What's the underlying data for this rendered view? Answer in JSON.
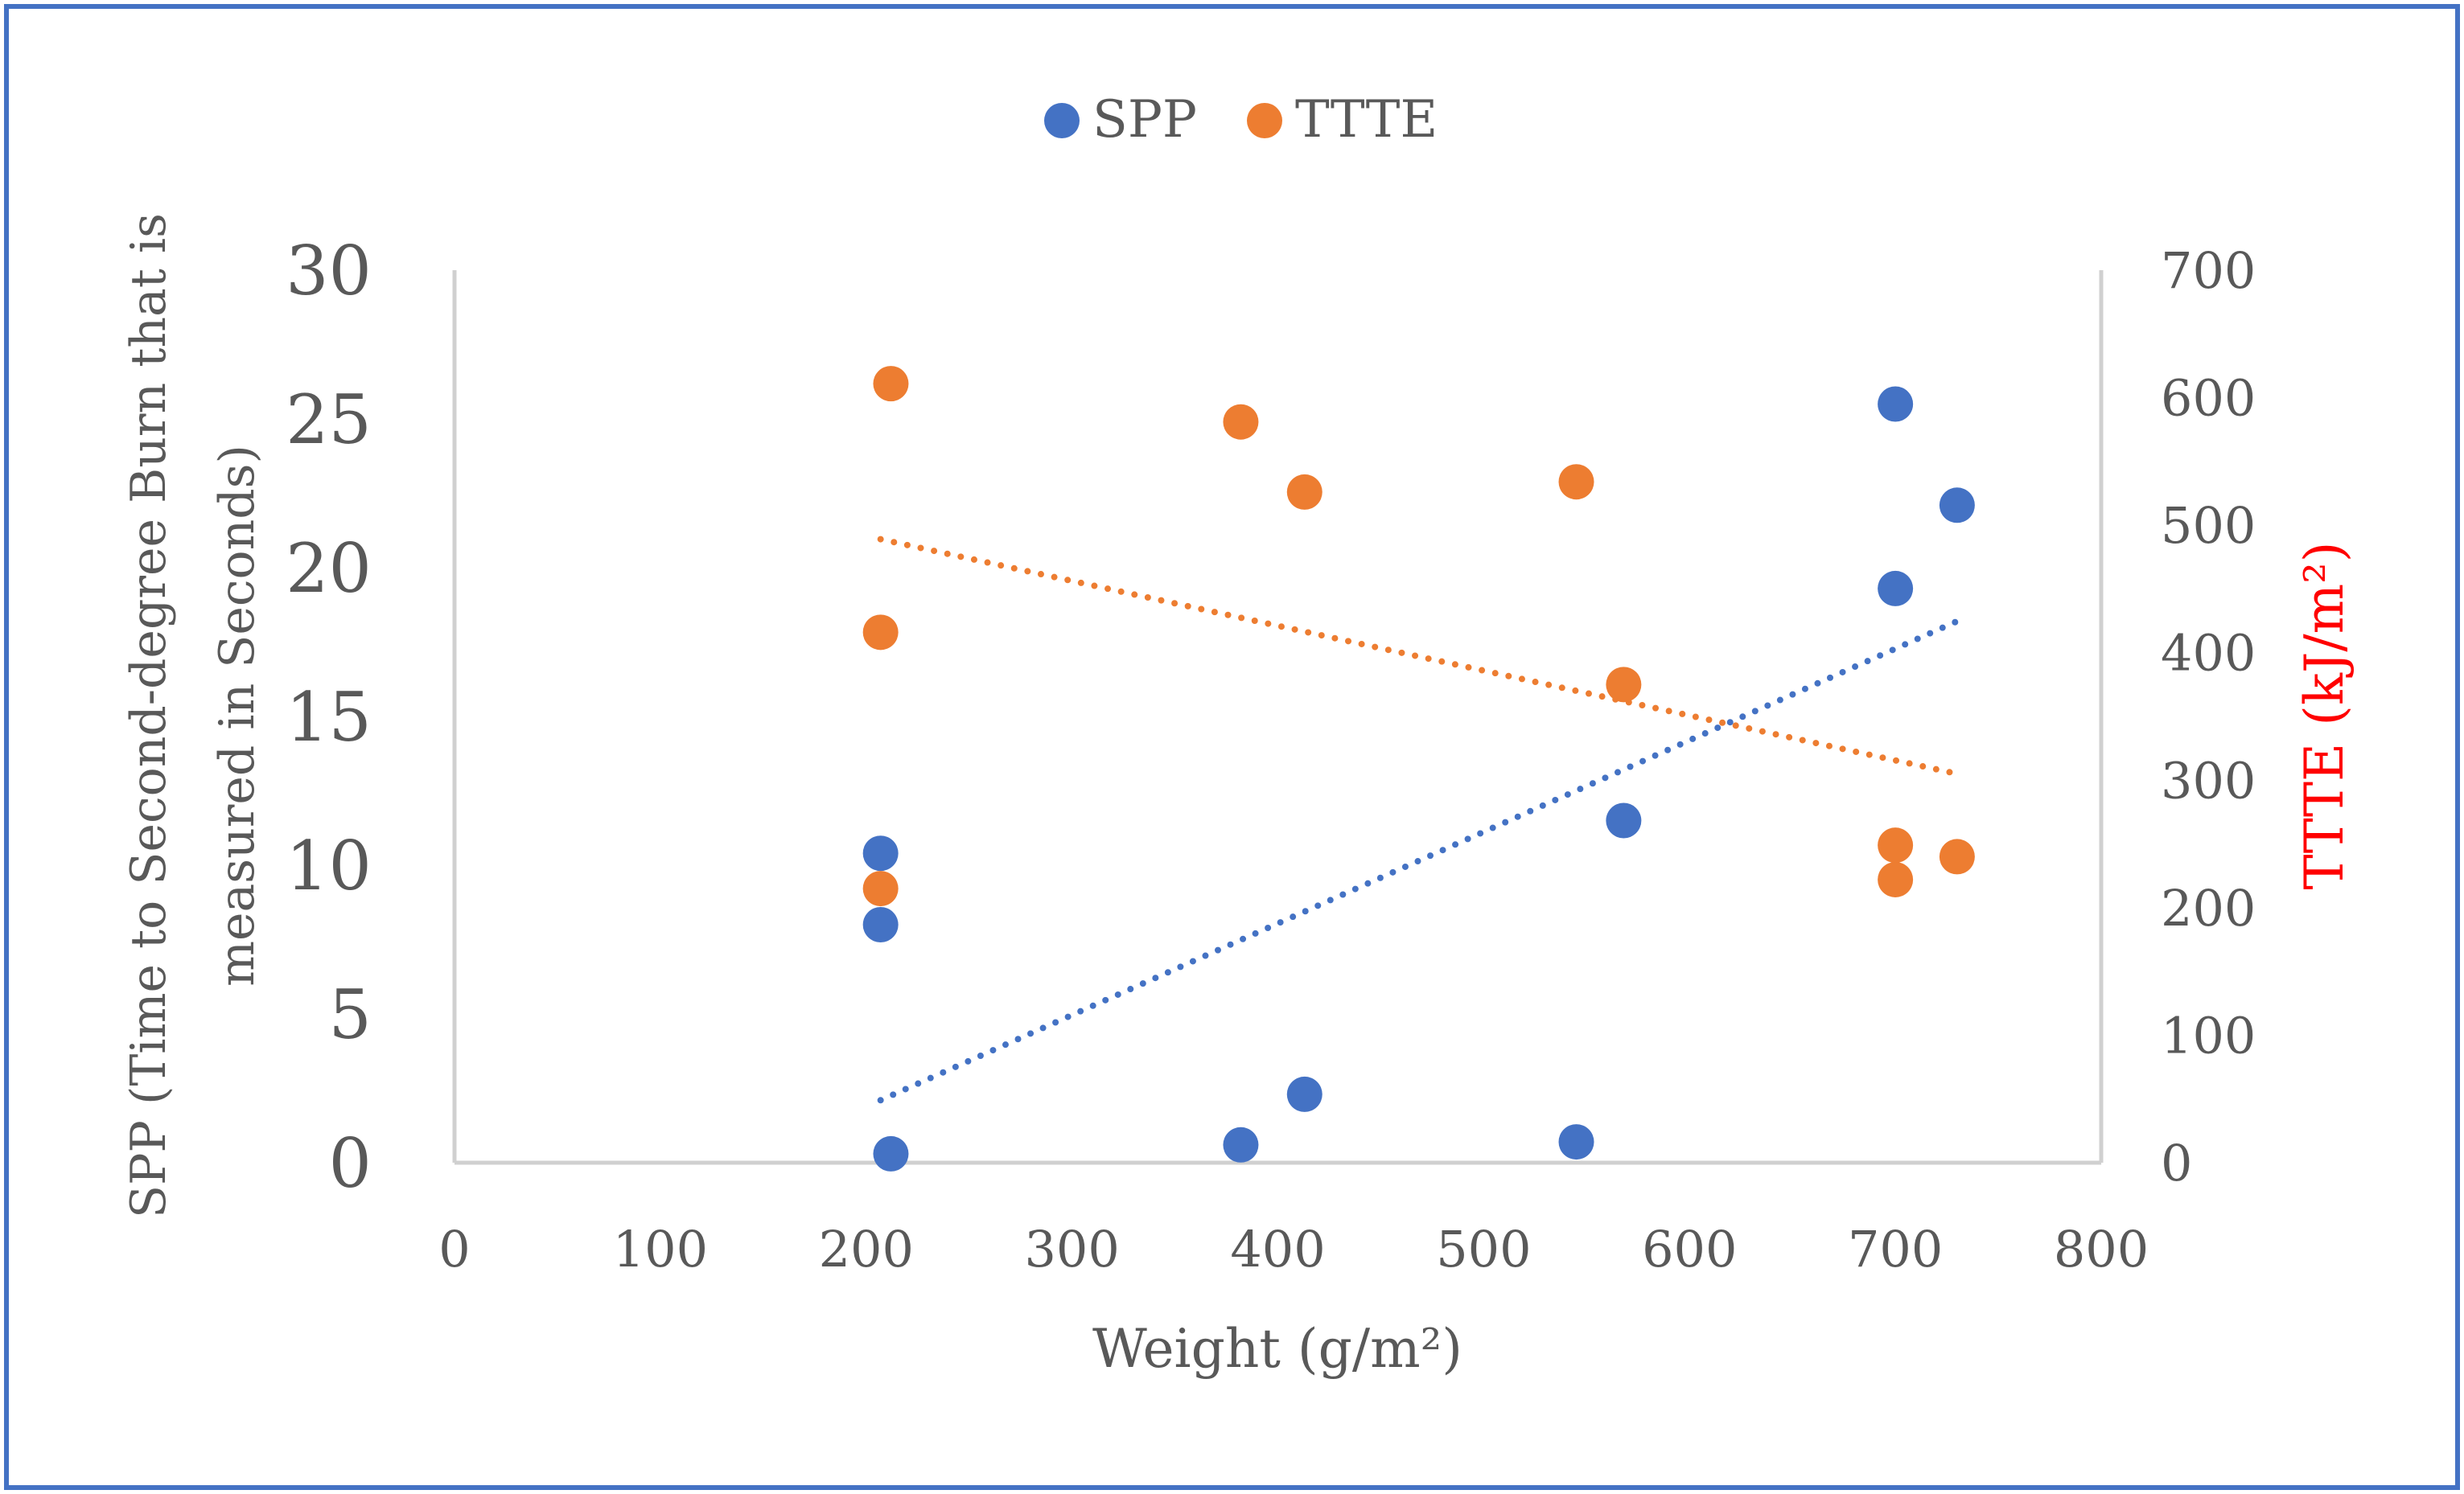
{
  "chart_data": {
    "type": "scatter",
    "xlabel": "Weight (g/m²)",
    "ylabel": "SPP (Time to Second-degree Burn that is measured in Seconds)",
    "ylabel_line1": "SPP (Time to Second-degree Burn that is",
    "ylabel_line2": "measured in Seconds)",
    "y2label": "TTTE (kJ/m²)",
    "xlim": [
      0,
      800
    ],
    "ylim": [
      0,
      30
    ],
    "y2lim": [
      0,
      700
    ],
    "x_ticks": [
      "0",
      "100",
      "200",
      "300",
      "400",
      "500",
      "600",
      "700",
      "800"
    ],
    "y_ticks": [
      "0",
      "5",
      "10",
      "15",
      "20",
      "25",
      "30"
    ],
    "y2_ticks": [
      "0",
      "100",
      "200",
      "300",
      "400",
      "500",
      "600",
      "700"
    ],
    "grid": false,
    "legend": "top-center",
    "series": [
      {
        "name": "SPP",
        "axis": "left",
        "color": "#4472C4",
        "x": [
          207,
          212,
          207,
          382,
          413,
          545,
          568,
          700,
          730,
          700
        ],
        "y": [
          8.0,
          0.3,
          10.4,
          0.6,
          2.3,
          0.7,
          11.5,
          19.3,
          22.1,
          25.5
        ],
        "trendline": {
          "type": "linear",
          "dotted": true,
          "x": [
            207,
            730
          ],
          "y": [
            2.1,
            18.2
          ]
        }
      },
      {
        "name": "TTTE",
        "axis": "right",
        "color": "#ED7D31",
        "x": [
          212,
          207,
          207,
          382,
          413,
          545,
          568,
          700,
          700,
          730
        ],
        "y": [
          611,
          416,
          215,
          581,
          526,
          534,
          375,
          249,
          222,
          240
        ],
        "trendline": {
          "type": "linear",
          "dotted": true,
          "x": [
            207,
            730
          ],
          "y": [
            489,
            305
          ]
        }
      }
    ]
  }
}
